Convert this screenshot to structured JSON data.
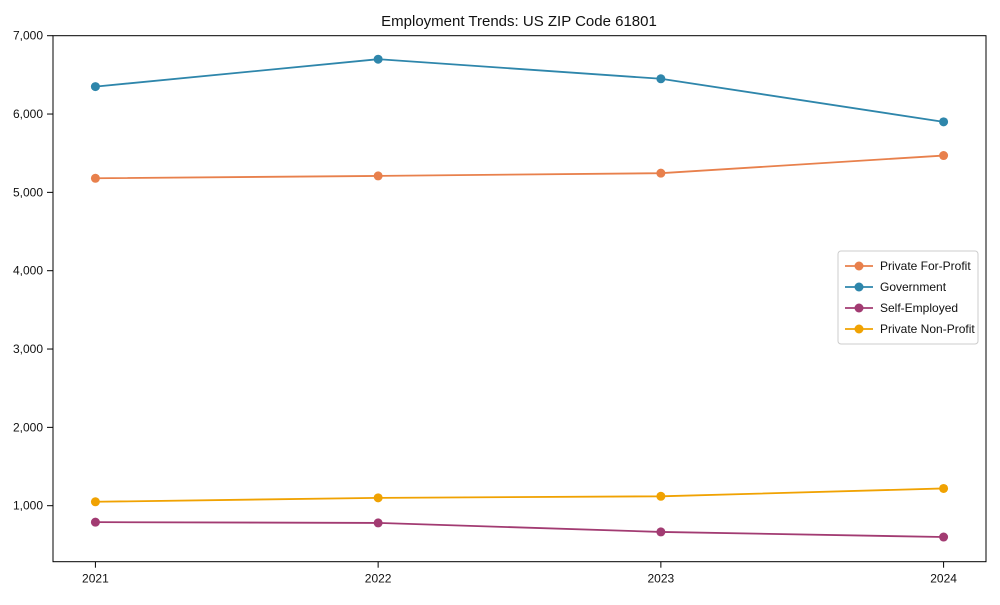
{
  "page_title": "Employment Trends: US ZIP Code 61801",
  "chart_data": {
    "type": "line",
    "title": "Employment Trends: US ZIP Code 61801",
    "xlabel": "",
    "ylabel": "",
    "categories": [
      "2021",
      "2022",
      "2023",
      "2024"
    ],
    "series": [
      {
        "name": "Private For-Profit",
        "color": "#E8804C",
        "values": [
          5180,
          5210,
          5245,
          5470
        ]
      },
      {
        "name": "Government",
        "color": "#2E86AB",
        "values": [
          6350,
          6700,
          6450,
          5900
        ]
      },
      {
        "name": "Self-Employed",
        "color": "#A23B72",
        "values": [
          790,
          780,
          665,
          600
        ]
      },
      {
        "name": "Private Non-Profit",
        "color": "#F0A202",
        "values": [
          1050,
          1100,
          1120,
          1220
        ]
      }
    ],
    "ylim": [
      285,
      7000
    ],
    "yticks": [
      1000,
      2000,
      3000,
      4000,
      5000,
      6000,
      7000
    ],
    "ytick_labels": [
      "1,000",
      "2,000",
      "3,000",
      "4,000",
      "5,000",
      "6,000",
      "7,000"
    ],
    "grid": false,
    "legend_position": "center-right",
    "marker": "circle",
    "axis_color": "#000000",
    "legend_border_color": "#cccccc",
    "legend_background": "#ffffff"
  }
}
